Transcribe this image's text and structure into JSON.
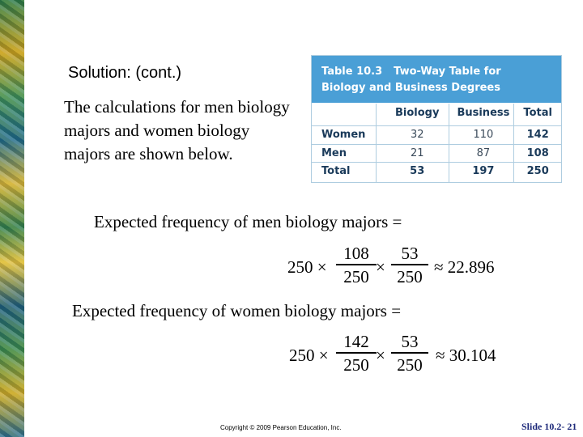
{
  "subtitle": "Solution: (cont.)",
  "body_text": "The calculations for men biology majors and women biology majors are shown below.",
  "table": {
    "number": "Table 10.3",
    "title_line1": "Two-Way Table for",
    "title_line2": "Biology and Business Degrees",
    "columns": [
      "",
      "Biology",
      "Business",
      "Total"
    ],
    "rows": [
      {
        "label": "Women",
        "biology": "32",
        "business": "110",
        "total": "142"
      },
      {
        "label": "Men",
        "biology": "21",
        "business": "87",
        "total": "108"
      },
      {
        "label": "Total",
        "biology": "53",
        "business": "197",
        "total": "250"
      }
    ]
  },
  "eq1": {
    "label": "Expected frequency of men biology majors =",
    "lead": "250 ×",
    "f1_num": "108",
    "f1_den": "250",
    "times": "×",
    "f2_num": "53",
    "f2_den": "250",
    "result": "≈ 22.896"
  },
  "eq2": {
    "label": "Expected frequency of women biology majors =",
    "lead": "250 ×",
    "f1_num": "142",
    "f1_den": "250",
    "times": "×",
    "f2_num": "53",
    "f2_den": "250",
    "result": "≈ 30.104"
  },
  "footer": {
    "copyright": "Copyright © 2009 Pearson Education, Inc.",
    "slide": "Slide 10.2- 21"
  },
  "colors": {
    "table_header": "#4a9fd6",
    "slide_number": "#1e2a7a"
  }
}
